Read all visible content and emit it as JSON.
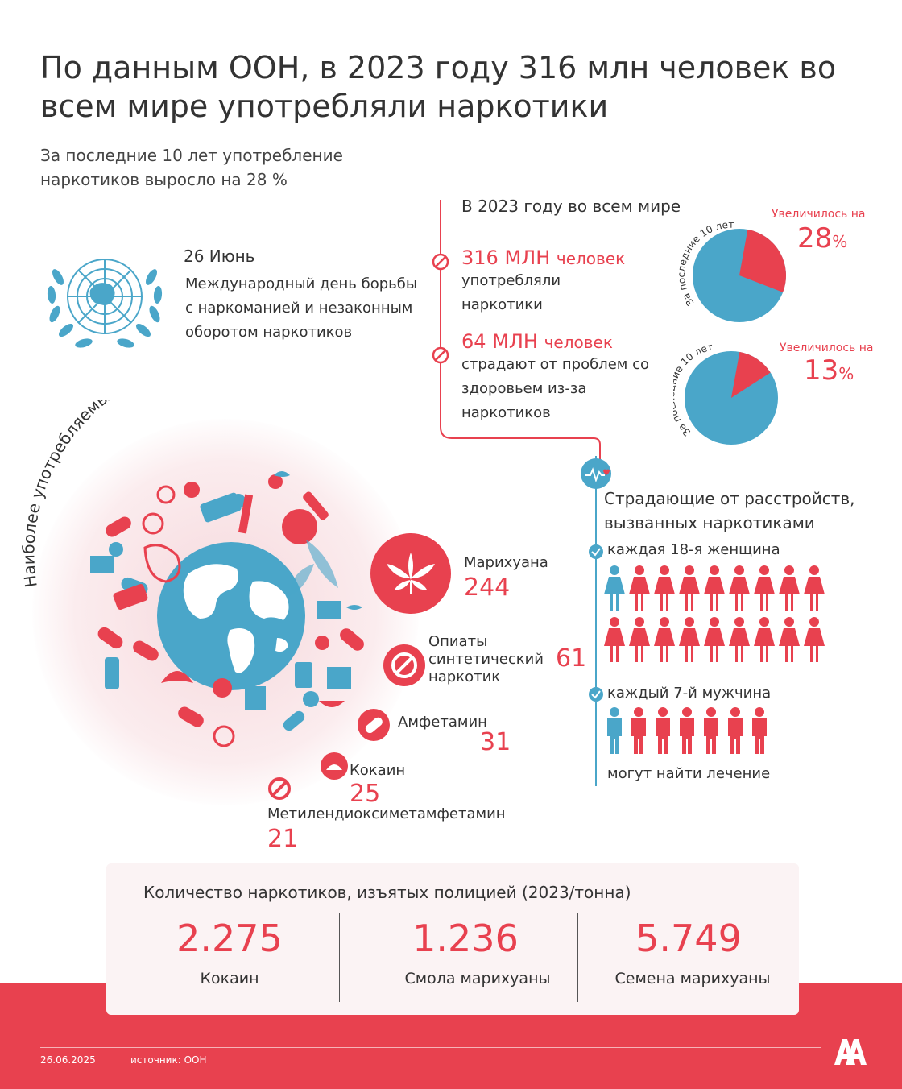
{
  "header": {
    "title": "По данным ООН, в 2023 году 316 млн человек во всем мире употребляли наркотики",
    "subtitle": "За последние 10 лет употребление наркотиков выросло на 28 %"
  },
  "un_day": {
    "date": "26 Июнь",
    "text": "Международный день борьбы с наркоманией и незаконным оборотом наркотиков"
  },
  "world_stats": {
    "heading": "В 2023 году во всем мире",
    "stat1": {
      "number": "316 МЛН",
      "unit": "человек",
      "desc": "употребляли наркотики"
    },
    "stat2": {
      "number": "64 МЛН",
      "unit": "человек",
      "desc": "страдают от проблем со здоровьем из-за наркотиков"
    },
    "pie1": {
      "arc_label": "За последние 10 лет",
      "increase_label": "Увеличилось на",
      "value": "28",
      "pct": "%",
      "fraction": 0.28
    },
    "pie2": {
      "arc_label": "За последние 10 лет",
      "increase_label": "Увеличилось на",
      "value": "13",
      "pct": "%",
      "fraction": 0.13
    }
  },
  "disorders": {
    "title": "Страдающие от расстройств, вызванных наркотиками",
    "women": "каждая 18-я женщина",
    "men": "каждый 7-й мужчина",
    "footer": "могут найти лечение",
    "women_total": 18,
    "men_total": 7
  },
  "drug_types": {
    "arc_title": "Наиболее употребляемые виды (в млн человек)",
    "items": [
      {
        "name": "Марихуана",
        "value": "244"
      },
      {
        "name": "Опиаты синтетический наркотик",
        "value": "61"
      },
      {
        "name": "Амфетамин",
        "value": "31"
      },
      {
        "name": "Кокаин",
        "value": "25"
      },
      {
        "name": "Метилендиоксиметамфетамин",
        "value": "21"
      }
    ]
  },
  "seized": {
    "title": "Количество наркотиков, изъятых полицией (2023/тонна)",
    "items": [
      {
        "value": "2.275",
        "label": "Кокаин"
      },
      {
        "value": "1.236",
        "label": "Смола марихуаны"
      },
      {
        "value": "5.749",
        "label": "Семена марихуаны"
      }
    ]
  },
  "footer": {
    "date": "26.06.2025",
    "source": "источник: ООН"
  },
  "colors": {
    "accent": "#e8414f",
    "blue": "#4aa6c9",
    "text": "#333333"
  }
}
